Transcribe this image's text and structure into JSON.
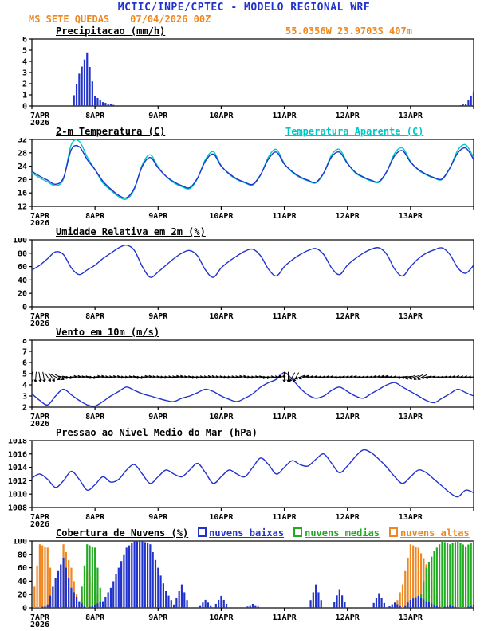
{
  "header": {
    "title": "MCTIC/INPE/CPTEC - MODELO REGIONAL WRF",
    "station": "MS SETE QUEDAS",
    "run_datetime": "07/04/2026 00Z",
    "location": "55.0356W 23.9703S 407m"
  },
  "axis": {
    "x_labels": [
      "7APR",
      "8APR",
      "9APR",
      "10APR",
      "11APR",
      "12APR",
      "13APR"
    ],
    "year_label": "2026",
    "total_hours": 168,
    "step_hours": 3
  },
  "colors": {
    "blue": "#2233cc",
    "cyan": "#00c8c8",
    "green": "#22aa22",
    "orange": "#ee8822",
    "axis": "#000000"
  },
  "chart_data": [
    {
      "type": "bar",
      "title": "Precipitacao (mm/h)",
      "ylim": [
        0,
        6
      ],
      "yticks": [
        0,
        1,
        2,
        3,
        4,
        5,
        6
      ],
      "color": "#2233cc",
      "values": [
        0,
        0,
        0,
        0,
        0,
        0,
        2.9,
        4.8,
        0.9,
        0.35,
        0.15,
        0,
        0,
        0,
        0,
        0,
        0,
        0,
        0,
        0,
        0,
        0,
        0,
        0,
        0,
        0,
        0,
        0,
        0,
        0,
        0,
        0,
        0,
        0,
        0,
        0,
        0,
        0,
        0,
        0,
        0,
        0,
        0,
        0,
        0,
        0,
        0,
        0,
        0,
        0,
        0,
        0,
        0,
        0,
        0,
        0.2,
        1.3
      ]
    },
    {
      "type": "line",
      "title": "2-m Temperatura (C)",
      "title2": "Temperatura Aparente (C)",
      "ylim": [
        12,
        32
      ],
      "yticks": [
        12,
        16,
        20,
        24,
        28,
        32
      ],
      "series": [
        {
          "name": "Temperatura Aparente (C)",
          "color": "#00c8c8",
          "values": [
            22.0,
            20.5,
            19.3,
            18.2,
            20.2,
            30.5,
            31.4,
            26.8,
            23.0,
            19.0,
            16.8,
            14.9,
            14.2,
            17.2,
            24.5,
            27.4,
            23.8,
            21.0,
            19.0,
            17.9,
            17.3,
            20.3,
            26.0,
            28.3,
            24.2,
            21.6,
            20.0,
            19.0,
            18.4,
            21.4,
            26.8,
            29.0,
            24.8,
            22.2,
            20.6,
            19.6,
            19.0,
            21.9,
            27.4,
            29.0,
            25.0,
            22.0,
            20.6,
            19.6,
            19.2,
            22.4,
            27.9,
            29.4,
            25.4,
            22.8,
            21.4,
            20.4,
            20.0,
            23.4,
            28.8,
            30.4,
            26.6
          ]
        },
        {
          "name": "2-m Temperatura (C)",
          "color": "#2233cc",
          "values": [
            22.5,
            21.0,
            19.8,
            18.6,
            20.5,
            29.0,
            29.8,
            26.0,
            23.0,
            19.5,
            17.2,
            15.3,
            14.6,
            17.5,
            24.0,
            26.6,
            23.5,
            21.0,
            19.3,
            18.2,
            17.6,
            20.5,
            25.5,
            27.6,
            24.0,
            21.8,
            20.2,
            19.2,
            18.6,
            21.5,
            26.2,
            28.2,
            24.6,
            22.4,
            20.8,
            19.8,
            19.2,
            22.0,
            26.8,
            28.2,
            24.8,
            22.2,
            20.8,
            19.8,
            19.4,
            22.5,
            27.2,
            28.6,
            25.2,
            23.0,
            21.6,
            20.6,
            20.2,
            23.5,
            28.0,
            29.4,
            26.0
          ]
        }
      ]
    },
    {
      "type": "line",
      "title": "Umidade Relativa em 2m (%)",
      "ylim": [
        0,
        100
      ],
      "yticks": [
        0,
        20,
        40,
        60,
        80,
        100
      ],
      "series": [
        {
          "name": "Umidade Relativa",
          "color": "#2233cc",
          "values": [
            55,
            62,
            72,
            82,
            78,
            58,
            48,
            55,
            62,
            72,
            80,
            88,
            92,
            84,
            60,
            44,
            52,
            62,
            72,
            80,
            84,
            76,
            55,
            44,
            58,
            68,
            76,
            83,
            86,
            76,
            56,
            46,
            60,
            70,
            78,
            84,
            87,
            78,
            58,
            48,
            62,
            72,
            80,
            86,
            88,
            78,
            56,
            46,
            60,
            72,
            80,
            85,
            88,
            78,
            58,
            50,
            62
          ]
        }
      ]
    },
    {
      "type": "wind",
      "title": "Vento em 10m (m/s)",
      "ylim": [
        2,
        8
      ],
      "yticks": [
        2,
        3,
        4,
        5,
        6,
        7,
        8
      ],
      "color": "#2233cc",
      "barb_color": "#000000",
      "barb_level": 4.7,
      "speed": [
        3.2,
        2.6,
        2.2,
        3.0,
        3.6,
        3.1,
        2.6,
        2.2,
        2.1,
        2.5,
        3.0,
        3.4,
        3.8,
        3.5,
        3.2,
        3.0,
        2.8,
        2.6,
        2.5,
        2.8,
        3.0,
        3.3,
        3.6,
        3.4,
        3.0,
        2.7,
        2.5,
        2.8,
        3.2,
        3.8,
        4.2,
        4.5,
        5.1,
        4.5,
        3.7,
        3.1,
        2.8,
        3.0,
        3.5,
        3.8,
        3.4,
        3.0,
        2.8,
        3.2,
        3.6,
        4.0,
        4.2,
        3.8,
        3.4,
        3.0,
        2.6,
        2.4,
        2.8,
        3.2,
        3.6,
        3.3,
        3.0
      ],
      "dir_deg": [
        95,
        80,
        55,
        30,
        10,
        355,
        0,
        8,
        352,
        0,
        356,
        4,
        0,
        8,
        354,
        0,
        4,
        0,
        352,
        0,
        6,
        0,
        356,
        0,
        4,
        0,
        354,
        4,
        0,
        10,
        0,
        350,
        90,
        120,
        160,
        180,
        184,
        178,
        182,
        176,
        180,
        184,
        178,
        180,
        186,
        190,
        180,
        172,
        162,
        152,
        170,
        180,
        176,
        180,
        184,
        180,
        176
      ]
    },
    {
      "type": "line",
      "title": "Pressao ao Nivel Medio do Mar (hPa)",
      "ylim": [
        1008,
        1018
      ],
      "yticks": [
        1008,
        1010,
        1012,
        1014,
        1016,
        1018
      ],
      "series": [
        {
          "name": "Pressao ao Nivel Medio do Mar",
          "color": "#2233cc",
          "values": [
            1012.4,
            1013.0,
            1012.2,
            1011.0,
            1012.0,
            1013.4,
            1012.2,
            1010.6,
            1011.4,
            1012.6,
            1011.8,
            1012.2,
            1013.6,
            1014.4,
            1013.0,
            1011.6,
            1012.6,
            1013.6,
            1013.0,
            1012.6,
            1013.6,
            1014.6,
            1013.2,
            1011.6,
            1012.6,
            1013.6,
            1013.0,
            1012.6,
            1014.0,
            1015.4,
            1014.4,
            1013.0,
            1014.0,
            1015.0,
            1014.4,
            1014.2,
            1015.2,
            1016.0,
            1014.6,
            1013.2,
            1014.2,
            1015.6,
            1016.6,
            1016.2,
            1015.2,
            1014.0,
            1012.6,
            1011.6,
            1012.6,
            1013.6,
            1013.2,
            1012.2,
            1011.2,
            1010.2,
            1009.6,
            1010.6,
            1010.2
          ]
        }
      ]
    },
    {
      "type": "cloudbar",
      "title": "Cobertura de Nuvens (%)",
      "ylim": [
        0,
        100
      ],
      "yticks": [
        0,
        20,
        40,
        60,
        80,
        100
      ],
      "legend": [
        {
          "label": "nuvens baixas",
          "color": "#2233cc"
        },
        {
          "label": "nuvens medias",
          "color": "#22aa22"
        },
        {
          "label": "nuvens altas",
          "color": "#ee8822"
        }
      ],
      "series": [
        {
          "name": "nuvens altas",
          "color": "#ee8822",
          "values": [
            0,
            95,
            90,
            0,
            95,
            60,
            0,
            55,
            30,
            0,
            0,
            0,
            0,
            0,
            0,
            0,
            0,
            0,
            0,
            0,
            0,
            0,
            0,
            0,
            0,
            0,
            0,
            0,
            0,
            0,
            0,
            0,
            0,
            0,
            0,
            0,
            0,
            0,
            0,
            0,
            0,
            0,
            0,
            0,
            0,
            0,
            0,
            35,
            95,
            90,
            65,
            30,
            0,
            0,
            0,
            0,
            0
          ]
        },
        {
          "name": "nuvens medias",
          "color": "#22aa22",
          "values": [
            0,
            0,
            0,
            0,
            0,
            0,
            0,
            95,
            90,
            0,
            0,
            0,
            0,
            0,
            0,
            0,
            0,
            0,
            0,
            0,
            0,
            0,
            0,
            0,
            0,
            0,
            0,
            0,
            0,
            0,
            0,
            0,
            0,
            0,
            0,
            0,
            0,
            0,
            0,
            0,
            0,
            0,
            0,
            0,
            0,
            0,
            0,
            0,
            0,
            0,
            60,
            85,
            100,
            95,
            100,
            92,
            100
          ]
        },
        {
          "name": "nuvens baixas",
          "color": "#2233cc",
          "values": [
            0,
            0,
            5,
            45,
            75,
            30,
            10,
            0,
            5,
            10,
            30,
            60,
            90,
            100,
            100,
            95,
            60,
            25,
            5,
            35,
            0,
            0,
            12,
            0,
            18,
            0,
            0,
            0,
            6,
            0,
            0,
            0,
            0,
            0,
            0,
            0,
            35,
            0,
            0,
            28,
            0,
            0,
            0,
            0,
            22,
            0,
            8,
            0,
            12,
            18,
            10,
            5,
            0,
            5,
            0,
            0,
            5
          ]
        }
      ]
    }
  ]
}
